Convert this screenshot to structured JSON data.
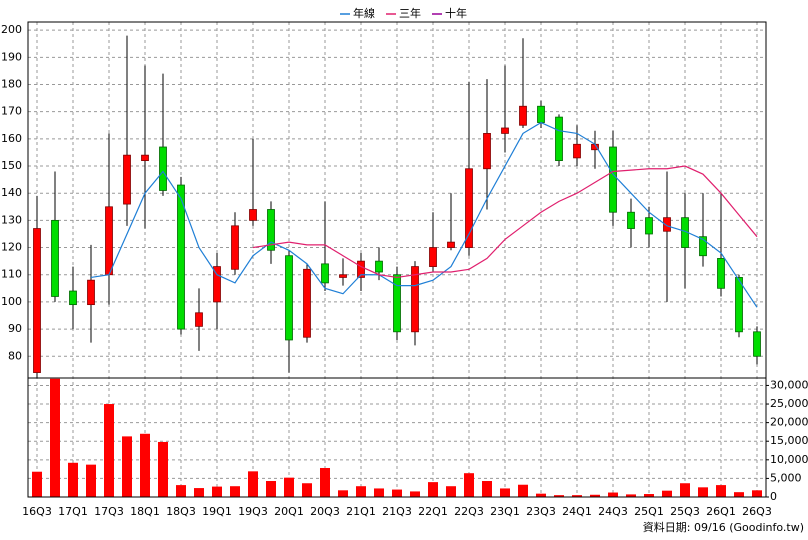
{
  "chart_data": {
    "type": "candlestick",
    "categories": [
      "16Q3",
      null,
      "17Q1",
      null,
      "17Q3",
      null,
      "18Q1",
      null,
      "18Q3",
      null,
      "19Q1",
      null,
      "19Q3",
      null,
      "20Q1",
      null,
      "20Q3",
      null,
      "21Q1",
      null,
      "21Q3",
      null,
      "22Q1",
      null,
      "22Q3",
      null,
      "23Q1",
      null,
      "23Q3",
      null,
      "24Q1",
      null,
      "24Q3",
      null,
      "25Q1",
      null,
      "25Q3",
      null,
      "26Q1",
      null,
      "26Q3"
    ],
    "open": [
      74,
      130,
      104,
      99,
      110,
      136,
      152,
      157,
      143,
      91,
      100,
      112,
      130,
      134,
      117,
      87,
      114,
      109,
      109,
      115,
      110,
      89,
      113,
      120,
      120,
      149,
      162,
      165,
      172,
      168,
      153,
      156,
      157,
      133,
      131,
      126,
      131,
      124,
      116,
      109,
      89
    ],
    "high": [
      139,
      148,
      113,
      121,
      162,
      198,
      187,
      184,
      146,
      105,
      118,
      133,
      160,
      137,
      119,
      114,
      137,
      116,
      118,
      120,
      113,
      115,
      133,
      140,
      181,
      182,
      187,
      197,
      174,
      169,
      165,
      163,
      163,
      138,
      135,
      148,
      140,
      140,
      140,
      110,
      91
    ],
    "low": [
      72,
      100,
      90,
      85,
      99,
      128,
      127,
      139,
      88,
      82,
      90,
      110,
      128,
      114,
      74,
      85,
      104,
      106,
      104,
      108,
      86,
      84,
      111,
      119,
      117,
      134,
      155,
      164,
      164,
      150,
      150,
      149,
      128,
      120,
      120,
      100,
      105,
      113,
      102,
      87,
      77
    ],
    "close": [
      127,
      102,
      99,
      108,
      135,
      154,
      154,
      141,
      90,
      96,
      113,
      128,
      134,
      119,
      86,
      112,
      107,
      110,
      115,
      111,
      89,
      113,
      120,
      122,
      149,
      162,
      164,
      172,
      166,
      152,
      158,
      158,
      133,
      127,
      125,
      131,
      120,
      117,
      105,
      89,
      80
    ],
    "up_color": "#ff0000",
    "down_color": "#00dd00",
    "ylim": [
      72,
      203
    ],
    "yticks": [
      80,
      90,
      100,
      110,
      120,
      130,
      140,
      150,
      160,
      170,
      180,
      190,
      200
    ],
    "series": [
      {
        "name": "年線",
        "color": "#1f7fd6",
        "values": [
          null,
          null,
          null,
          109,
          110,
          125,
          140,
          148,
          138,
          120,
          110,
          107,
          117,
          122,
          119,
          114,
          105,
          103,
          110,
          110,
          106,
          106,
          108,
          113,
          125,
          138,
          150,
          162,
          166,
          163,
          162,
          158,
          147,
          140,
          133,
          128,
          126,
          123,
          118,
          108,
          98
        ]
      },
      {
        "name": "三年",
        "color": "#e0206e",
        "values": [
          null,
          null,
          null,
          null,
          null,
          null,
          null,
          null,
          null,
          null,
          null,
          null,
          120,
          121,
          122,
          121,
          121,
          117,
          113,
          110,
          109,
          110,
          111,
          111,
          112,
          116,
          123,
          128,
          133,
          137,
          140,
          144,
          148,
          148.5,
          149,
          149,
          150,
          147,
          140,
          132,
          124
        ]
      },
      {
        "name": "十年",
        "color": "#990099",
        "values": [
          null,
          null,
          null,
          null,
          null,
          null,
          null,
          null,
          null,
          null,
          null,
          null,
          null,
          null,
          null,
          null,
          null,
          null,
          null,
          null,
          null,
          null,
          null,
          null,
          null,
          null,
          null,
          null,
          null,
          null,
          null,
          null,
          null,
          null,
          null,
          null,
          null,
          null,
          null,
          null,
          null
        ]
      }
    ],
    "volume": {
      "color": "#ff0000",
      "values": [
        6800,
        31800,
        9200,
        8700,
        25000,
        16300,
        17000,
        14800,
        3200,
        2400,
        2800,
        2900,
        6900,
        4300,
        5200,
        3700,
        7800,
        1800,
        2900,
        2300,
        2000,
        1500,
        4000,
        2900,
        6400,
        4300,
        2300,
        3300,
        900,
        500,
        500,
        600,
        1200,
        700,
        800,
        1700,
        3700,
        2600,
        3200,
        1300,
        1800
      ]
    },
    "y2lim": [
      0,
      32000
    ],
    "y2ticks": [
      0,
      {
        "value": 5000,
        "label": "5,000"
      },
      {
        "value": 10000,
        "label": "10,000"
      },
      {
        "value": 15000,
        "label": "15,000"
      },
      {
        "value": 20000,
        "label": "20,000"
      },
      {
        "value": 25000,
        "label": "25,000"
      },
      {
        "value": 30000,
        "label": "30,000"
      }
    ],
    "grid": true,
    "footnote": "資料日期: 09/16 (Goodinfo.tw)"
  }
}
